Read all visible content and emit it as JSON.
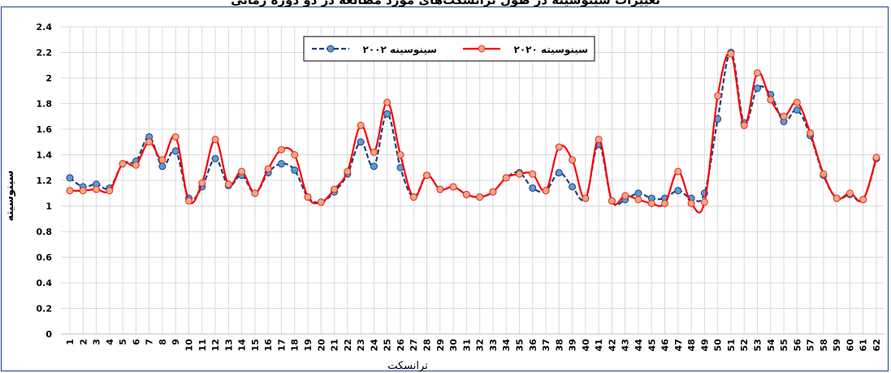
{
  "caption": "تغییرات سینوسیته در طول ترانسکت‌های مورد مطالعه در دو دوره زمانی",
  "chart_data": {
    "type": "line",
    "title": "",
    "xlabel": "ترانسکت",
    "ylabel": "سینوسیته",
    "ylim": [
      0,
      2.4
    ],
    "yticks": [
      0,
      0.2,
      0.4,
      0.6,
      0.8,
      1,
      1.2,
      1.4,
      1.6,
      1.8,
      2,
      2.2,
      2.4
    ],
    "ytick_labels": [
      "0",
      "0.2",
      "0.4",
      "0.6",
      "0.8",
      "1",
      "1.2",
      "1.4",
      "1.6",
      "1.8",
      "2",
      "2.2",
      "2.4"
    ],
    "grid": true,
    "legend_position": "top-center",
    "x": [
      1,
      2,
      3,
      4,
      5,
      6,
      7,
      8,
      9,
      10,
      11,
      12,
      13,
      14,
      15,
      16,
      17,
      18,
      19,
      20,
      21,
      22,
      23,
      24,
      25,
      26,
      27,
      28,
      29,
      30,
      31,
      32,
      33,
      34,
      35,
      36,
      37,
      38,
      39,
      40,
      41,
      42,
      43,
      44,
      45,
      46,
      47,
      48,
      49,
      50,
      51,
      52,
      53,
      54,
      55,
      56,
      57,
      58,
      59,
      60,
      61,
      62
    ],
    "x_tick_labels": [
      "1",
      "2",
      "3",
      "4",
      "5",
      "6",
      "7",
      "8",
      "9",
      "10",
      "11",
      "12",
      "13",
      "14",
      "15",
      "16",
      "17",
      "18",
      "19",
      "20",
      "21",
      "22",
      "23",
      "24",
      "25",
      "26",
      "27",
      "28",
      "29",
      "30",
      "31",
      "32",
      "33",
      "34",
      "35",
      "36",
      "37",
      "38",
      "39",
      "40",
      "41",
      "42",
      "43",
      "44",
      "45",
      "46",
      "47",
      "48",
      "49",
      "50",
      "51",
      "52",
      "53",
      "54",
      "55",
      "56",
      "57",
      "58",
      "59",
      "60",
      "61",
      "62"
    ],
    "series": [
      {
        "name": "سینوسینه ۲۰۰۲",
        "color": "#1f3f7a",
        "marker_fill": "#5b9bd5",
        "style": "dashed",
        "values": [
          1.22,
          1.15,
          1.17,
          1.14,
          1.33,
          1.35,
          1.54,
          1.31,
          1.43,
          1.06,
          1.15,
          1.37,
          1.16,
          1.24,
          1.1,
          1.26,
          1.33,
          1.28,
          1.07,
          1.03,
          1.11,
          1.25,
          1.5,
          1.31,
          1.72,
          1.3,
          1.07,
          1.24,
          1.13,
          1.15,
          1.09,
          1.07,
          1.11,
          1.22,
          1.26,
          1.14,
          1.12,
          1.26,
          1.15,
          1.06,
          1.48,
          1.04,
          1.05,
          1.1,
          1.06,
          1.06,
          1.12,
          1.06,
          1.1,
          1.68,
          2.2,
          1.65,
          1.92,
          1.87,
          1.66,
          1.75,
          1.55,
          1.24,
          1.06,
          1.09,
          1.05,
          1.37
        ]
      },
      {
        "name": "سینوسیته ۲۰۲۰",
        "color": "#ff0000",
        "marker_fill": "#f4a582",
        "style": "solid",
        "values": [
          1.12,
          1.12,
          1.13,
          1.12,
          1.33,
          1.32,
          1.5,
          1.36,
          1.54,
          1.04,
          1.18,
          1.52,
          1.17,
          1.27,
          1.1,
          1.29,
          1.44,
          1.4,
          1.07,
          1.03,
          1.13,
          1.27,
          1.63,
          1.42,
          1.81,
          1.4,
          1.07,
          1.24,
          1.13,
          1.15,
          1.09,
          1.07,
          1.11,
          1.22,
          1.25,
          1.25,
          1.12,
          1.46,
          1.36,
          1.06,
          1.52,
          1.04,
          1.08,
          1.05,
          1.02,
          1.02,
          1.27,
          1.02,
          1.03,
          1.86,
          2.19,
          1.63,
          2.04,
          1.83,
          1.7,
          1.81,
          1.57,
          1.25,
          1.06,
          1.1,
          1.05,
          1.38
        ]
      }
    ]
  }
}
